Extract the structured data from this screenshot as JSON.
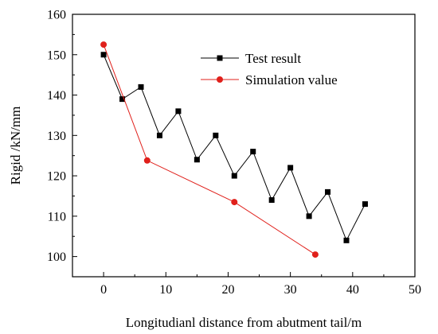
{
  "chart_data": {
    "type": "line",
    "title": "",
    "xlabel": "Longitudianl distance from abutment tail/m",
    "ylabel": "Rigid /kN/mm",
    "xlim": [
      -5,
      50
    ],
    "ylim": [
      95,
      160
    ],
    "xticks": [
      0,
      10,
      20,
      30,
      40,
      50
    ],
    "yticks": [
      100,
      110,
      120,
      130,
      140,
      150,
      160
    ],
    "grid": false,
    "legend_position": "top-right",
    "series": [
      {
        "name": "Test result",
        "marker": "square",
        "color": "#000000",
        "x": [
          0,
          3,
          6,
          9,
          12,
          15,
          18,
          21,
          24,
          27,
          30,
          33,
          36,
          39,
          42
        ],
        "y": [
          150,
          139,
          142,
          130,
          136,
          124,
          130,
          120,
          126,
          114,
          122,
          110,
          116,
          104,
          113
        ]
      },
      {
        "name": "Simulation value",
        "marker": "circle",
        "color": "#e0201b",
        "x": [
          0,
          7,
          21,
          34
        ],
        "y": [
          152.5,
          123.8,
          113.5,
          100.5
        ]
      }
    ]
  }
}
